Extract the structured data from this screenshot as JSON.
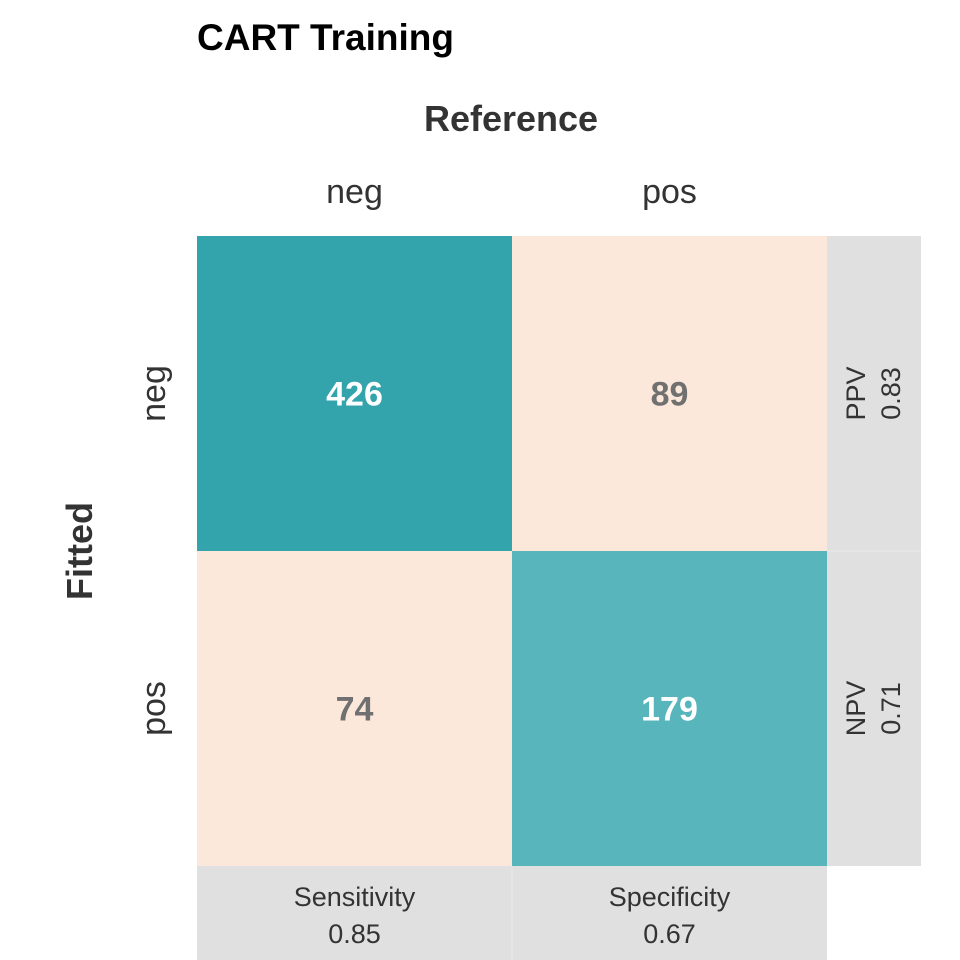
{
  "chart_data": {
    "type": "heatmap",
    "title": "CART Training",
    "xlabel": "Reference",
    "ylabel": "Fitted",
    "x_categories": [
      "neg",
      "pos"
    ],
    "y_categories": [
      "neg",
      "pos"
    ],
    "matrix": [
      [
        426,
        89
      ],
      [
        74,
        179
      ]
    ],
    "column_stats": [
      {
        "name": "Sensitivity",
        "value": "0.85"
      },
      {
        "name": "Specificity",
        "value": "0.67"
      }
    ],
    "row_stats": [
      {
        "name": "PPV",
        "value": "0.83"
      },
      {
        "name": "NPV",
        "value": "0.71"
      }
    ],
    "colors": {
      "correct_high": "#33a3ac",
      "correct_low": "#58b5bc",
      "error_high": "#f8cbad",
      "error_low": "#fce8da",
      "stats_panel": "#e0e0e0",
      "text_on_dark": "#ffffff",
      "text_on_light": "#707070"
    }
  }
}
